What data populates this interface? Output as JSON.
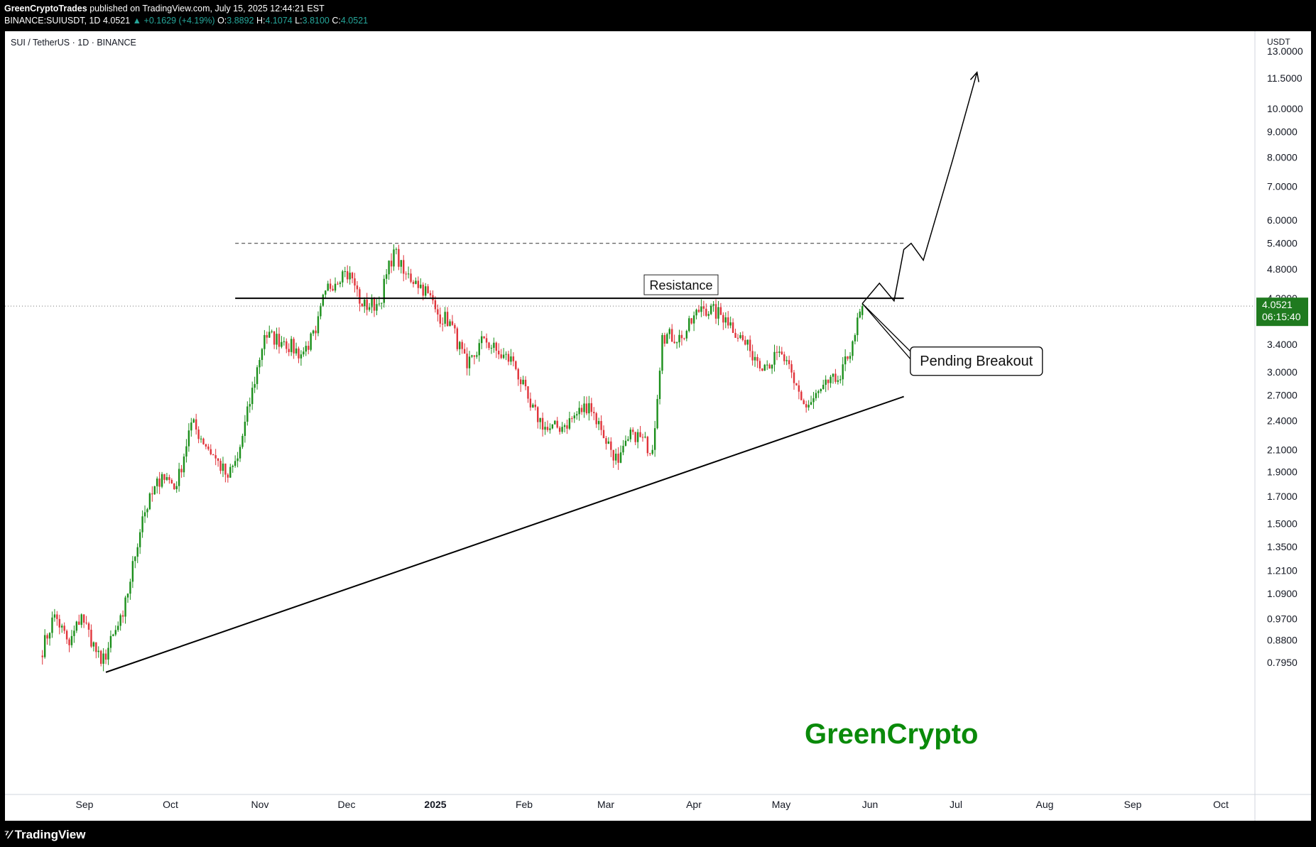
{
  "header": {
    "publisher": "GreenCryptoTrades",
    "published_text": "published on TradingView.com, July 15, 2025 12:44:21 EST",
    "symbol_line_prefix": "BINANCE:SUIUSDT, 1D",
    "last": "4.0521",
    "change": "+0.1629 (+4.19%)",
    "open_label": "O:",
    "open": "3.8892",
    "high_label": "H:",
    "high": "4.1074",
    "low_label": "L:",
    "low": "3.8100",
    "close_label": "C:",
    "close": "4.0521"
  },
  "chart_title": "SUI / TetherUS · 1D · BINANCE",
  "watermark": "GreenCrypto",
  "footer": {
    "brand": "TradingView"
  },
  "colors": {
    "up": "#26a69a",
    "down": "#ef5350",
    "candle_up": "#1b8f1b",
    "candle_down": "#e0333a",
    "watermark": "#0a8a0a",
    "price_tag": "#1f7a1f"
  },
  "chart_data": {
    "type": "candlestick",
    "title": "SUI / TetherUS · 1D · BINANCE",
    "price_scale": "log",
    "currency_label": "USDT",
    "y_ticks": [
      "13.0000",
      "11.5000",
      "10.0000",
      "9.0000",
      "8.0000",
      "7.0000",
      "6.0000",
      "5.4000",
      "4.8000",
      "4.2000",
      "3.4000",
      "3.0000",
      "2.7000",
      "2.4000",
      "2.1000",
      "1.9000",
      "1.7000",
      "1.5000",
      "1.3500",
      "1.2100",
      "1.0900",
      "0.9700",
      "0.8800",
      "0.7950"
    ],
    "x_ticks": [
      "Sep",
      "Oct",
      "Nov",
      "Dec",
      "2025",
      "Feb",
      "Mar",
      "Apr",
      "May",
      "Jun",
      "Jul",
      "Aug",
      "Sep",
      "Oct"
    ],
    "last_price": "4.0521",
    "countdown": "06:15:40",
    "annotations": {
      "resistance": {
        "label": "Resistance",
        "price": 4.2
      },
      "top_dashed": {
        "price": 5.4
      },
      "pending": {
        "label": "Pending Breakout"
      }
    },
    "anchors": [
      {
        "date": "2024-08-12",
        "close": 0.82
      },
      {
        "date": "2024-08-18",
        "close": 0.99
      },
      {
        "date": "2024-08-24",
        "close": 0.86
      },
      {
        "date": "2024-08-29",
        "close": 0.99
      },
      {
        "date": "2024-09-06",
        "close": 0.79
      },
      {
        "date": "2024-09-15",
        "close": 0.98
      },
      {
        "date": "2024-09-23",
        "close": 1.55
      },
      {
        "date": "2024-10-01",
        "close": 1.88
      },
      {
        "date": "2024-10-07",
        "close": 1.78
      },
      {
        "date": "2024-10-13",
        "close": 2.38
      },
      {
        "date": "2024-10-22",
        "close": 2.05
      },
      {
        "date": "2024-10-28",
        "close": 1.85
      },
      {
        "date": "2024-11-01",
        "close": 2.02
      },
      {
        "date": "2024-11-12",
        "close": 3.55
      },
      {
        "date": "2024-11-20",
        "close": 3.45
      },
      {
        "date": "2024-11-27",
        "close": 3.25
      },
      {
        "date": "2024-12-03",
        "close": 3.58
      },
      {
        "date": "2024-12-07",
        "close": 4.35
      },
      {
        "date": "2024-12-14",
        "close": 4.75
      },
      {
        "date": "2024-12-18",
        "close": 4.6
      },
      {
        "date": "2024-12-22",
        "close": 4.05
      },
      {
        "date": "2024-12-29",
        "close": 4.1
      },
      {
        "date": "2025-01-04",
        "close": 5.25
      },
      {
        "date": "2025-01-08",
        "close": 4.7
      },
      {
        "date": "2025-01-13",
        "close": 4.55
      },
      {
        "date": "2025-01-18",
        "close": 4.3
      },
      {
        "date": "2025-01-22",
        "close": 3.9
      },
      {
        "date": "2025-01-27",
        "close": 3.78
      },
      {
        "date": "2025-02-03",
        "close": 3.05
      },
      {
        "date": "2025-02-10",
        "close": 3.5
      },
      {
        "date": "2025-02-16",
        "close": 3.25
      },
      {
        "date": "2025-02-22",
        "close": 3.15
      },
      {
        "date": "2025-03-01",
        "close": 2.55
      },
      {
        "date": "2025-03-08",
        "close": 2.3
      },
      {
        "date": "2025-03-15",
        "close": 2.35
      },
      {
        "date": "2025-03-25",
        "close": 2.6
      },
      {
        "date": "2025-03-30",
        "close": 2.3
      },
      {
        "date": "2025-04-06",
        "close": 1.98
      },
      {
        "date": "2025-04-12",
        "close": 2.28
      },
      {
        "date": "2025-04-20",
        "close": 2.1
      },
      {
        "date": "2025-04-24",
        "close": 3.55
      },
      {
        "date": "2025-05-02",
        "close": 3.5
      },
      {
        "date": "2025-05-10",
        "close": 4.05
      },
      {
        "date": "2025-05-20",
        "close": 3.85
      },
      {
        "date": "2025-05-30",
        "close": 3.3
      },
      {
        "date": "2025-06-05",
        "close": 3.1
      },
      {
        "date": "2025-06-12",
        "close": 3.25
      },
      {
        "date": "2025-06-17",
        "close": 2.85
      },
      {
        "date": "2025-06-22",
        "close": 2.55
      },
      {
        "date": "2025-07-01",
        "close": 2.85
      },
      {
        "date": "2025-07-06",
        "close": 2.9
      },
      {
        "date": "2025-07-11",
        "close": 3.45
      },
      {
        "date": "2025-07-15",
        "close": 4.0521
      }
    ],
    "lines": [
      {
        "name": "support-trendline",
        "from": {
          "date": "2024-09-08",
          "price": 0.76
        },
        "to": {
          "date": "2025-08-01",
          "price": 2.68
        }
      },
      {
        "name": "resistance-line",
        "from": {
          "date": "2024-10-31",
          "price": 4.2
        },
        "to": {
          "date": "2025-08-01",
          "price": 4.2
        }
      },
      {
        "name": "top-dashed-line",
        "from": {
          "date": "2024-10-31",
          "price": 5.4
        },
        "to": {
          "date": "2025-08-01",
          "price": 5.4
        }
      }
    ],
    "projection_path": [
      {
        "date": "2025-07-15",
        "price": 4.1
      },
      {
        "date": "2025-07-22",
        "price": 4.5
      },
      {
        "date": "2025-07-28",
        "price": 4.15
      },
      {
        "date": "2025-08-01",
        "price": 5.25
      },
      {
        "date": "2025-08-04",
        "price": 5.4
      },
      {
        "date": "2025-08-09",
        "price": 5.0
      },
      {
        "date": "2025-08-21",
        "price": 7.9
      },
      {
        "date": "2025-08-31",
        "price": 11.8
      }
    ],
    "pending_arrow": {
      "from": {
        "date": "2025-07-15",
        "price": 4.1
      },
      "to": {
        "date": "2025-08-06",
        "price": 3.15
      }
    }
  }
}
